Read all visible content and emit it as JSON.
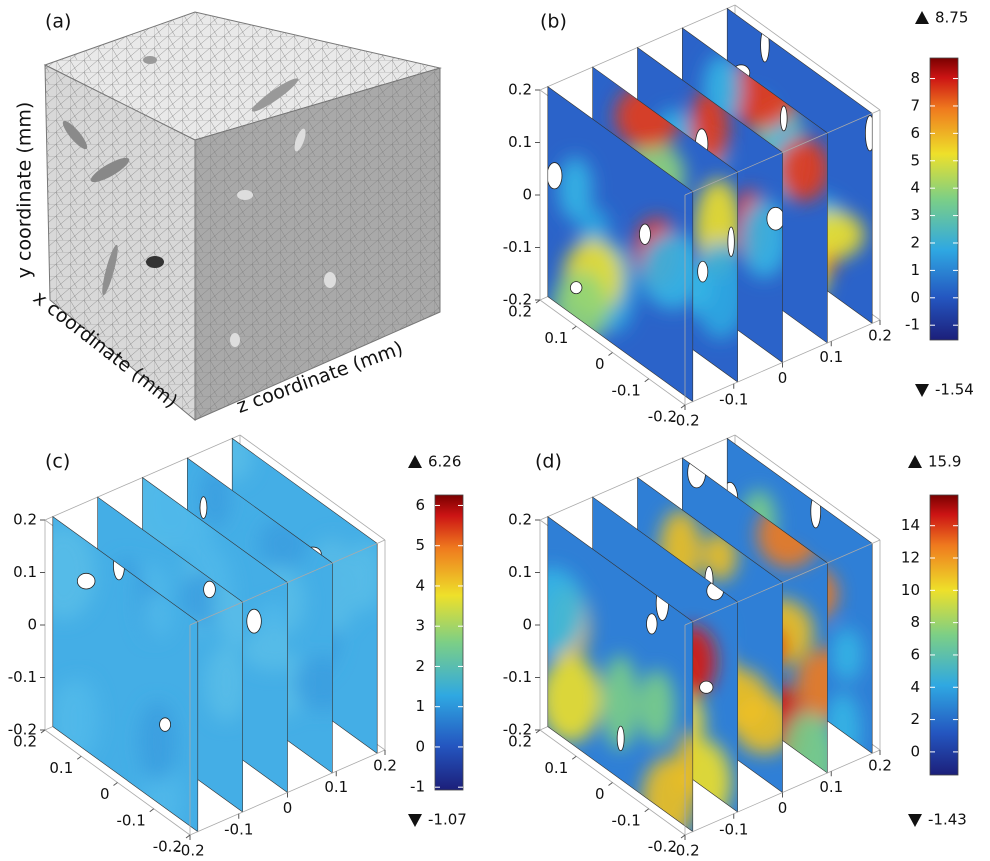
{
  "panels": [
    {
      "label": "(a)",
      "y_axis_label": "y coordinate (mm)",
      "x_axis_label": "x coordinate (mm)",
      "z_axis_label": "z coordinate (mm)"
    },
    {
      "label": "(b)",
      "xlim": [
        -0.2,
        0.2
      ],
      "ylim": [
        -0.2,
        0.2
      ],
      "zlim": [
        -0.2,
        0.2
      ],
      "yticks": [
        0.2,
        0.1,
        0,
        -0.1,
        -0.2
      ],
      "xticks": [
        0.2,
        0.1,
        0,
        -0.1,
        -0.2
      ],
      "zticks": [
        -0.2,
        -0.1,
        0,
        0.1,
        0.2
      ],
      "colorbar": {
        "max": 8.75,
        "min": -1.54,
        "ticks": [
          8,
          7,
          6,
          5,
          4,
          3,
          2,
          1,
          0,
          -1
        ]
      }
    },
    {
      "label": "(c)",
      "xlim": [
        -0.2,
        0.2
      ],
      "ylim": [
        -0.2,
        0.2
      ],
      "zlim": [
        -0.2,
        0.2
      ],
      "yticks": [
        0.2,
        0.1,
        0,
        -0.1,
        -0.2
      ],
      "xticks": [
        0.2,
        0.1,
        0,
        -0.1,
        -0.2
      ],
      "zticks": [
        -0.2,
        -0.1,
        0,
        0.1,
        0.2
      ],
      "colorbar": {
        "max": 6.26,
        "min": -1.07,
        "ticks": [
          6,
          5,
          4,
          3,
          2,
          1,
          0,
          -1
        ]
      }
    },
    {
      "label": "(d)",
      "xlim": [
        -0.2,
        0.2
      ],
      "ylim": [
        -0.2,
        0.2
      ],
      "zlim": [
        -0.2,
        0.2
      ],
      "yticks": [
        0.2,
        0.1,
        0,
        -0.1,
        -0.2
      ],
      "xticks": [
        0.2,
        0.1,
        0,
        -0.1,
        -0.2
      ],
      "zticks": [
        -0.2,
        -0.1,
        0,
        0.1,
        0.2
      ],
      "colorbar": {
        "max": 15.9,
        "min": -1.43,
        "ticks": [
          14,
          12,
          10,
          8,
          6,
          4,
          2,
          0
        ]
      }
    }
  ]
}
